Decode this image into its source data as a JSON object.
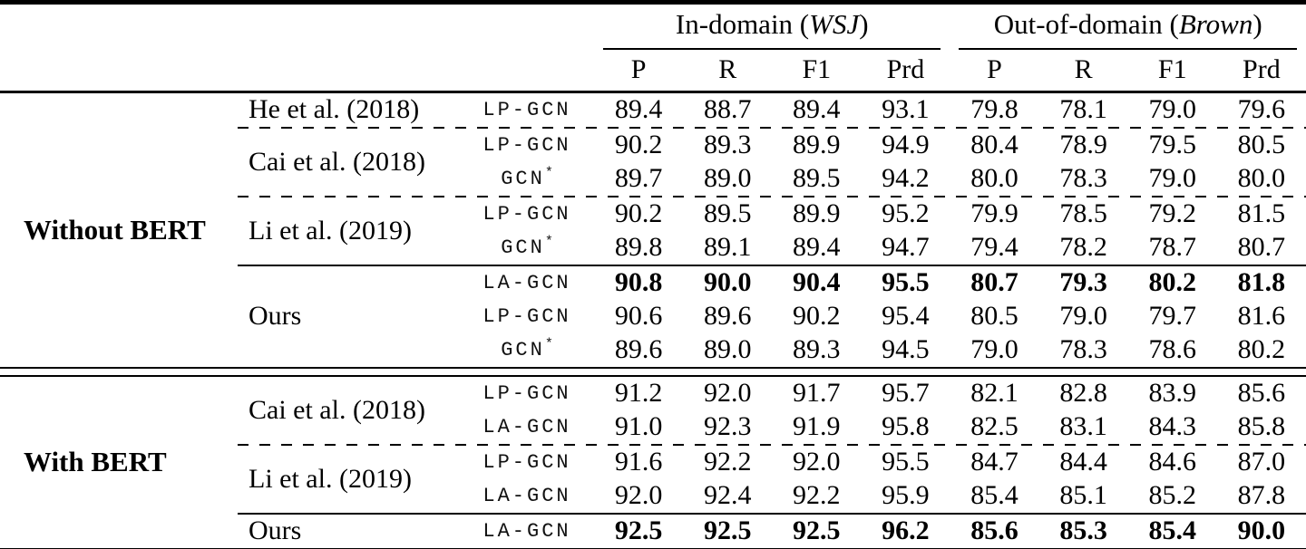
{
  "header": {
    "groups": [
      {
        "prefix": "In-domain (",
        "italic": "WSJ",
        "suffix": ")"
      },
      {
        "prefix": "Out-of-domain (",
        "italic": "Brown",
        "suffix": ")"
      }
    ],
    "metrics": [
      "P",
      "R",
      "F1",
      "Prd"
    ]
  },
  "sections": [
    {
      "label": "Without BERT",
      "groups": [
        {
          "method": "He et al. (2018)",
          "sep_after": "dashed",
          "rows": [
            {
              "model": "LP-GCN",
              "bold": false,
              "values": [
                "89.4",
                "88.7",
                "89.4",
                "93.1",
                "79.8",
                "78.1",
                "79.0",
                "79.6"
              ]
            }
          ]
        },
        {
          "method": "Cai et al. (2018)",
          "sep_after": "dashed",
          "rows": [
            {
              "model": "LP-GCN",
              "bold": false,
              "values": [
                "90.2",
                "89.3",
                "89.9",
                "94.9",
                "80.4",
                "78.9",
                "79.5",
                "80.5"
              ]
            },
            {
              "model": "GCN*",
              "bold": false,
              "values": [
                "89.7",
                "89.0",
                "89.5",
                "94.2",
                "80.0",
                "78.3",
                "79.0",
                "80.0"
              ]
            }
          ]
        },
        {
          "method": "Li et al. (2019)",
          "sep_after": "solid",
          "rows": [
            {
              "model": "LP-GCN",
              "bold": false,
              "values": [
                "90.2",
                "89.5",
                "89.9",
                "95.2",
                "79.9",
                "78.5",
                "79.2",
                "81.5"
              ]
            },
            {
              "model": "GCN*",
              "bold": false,
              "values": [
                "89.8",
                "89.1",
                "89.4",
                "94.7",
                "79.4",
                "78.2",
                "78.7",
                "80.7"
              ]
            }
          ]
        },
        {
          "method": "Ours",
          "sep_after": null,
          "rows": [
            {
              "model": "LA-GCN",
              "bold": true,
              "values": [
                "90.8",
                "90.0",
                "90.4",
                "95.5",
                "80.7",
                "79.3",
                "80.2",
                "81.8"
              ]
            },
            {
              "model": "LP-GCN",
              "bold": false,
              "values": [
                "90.6",
                "89.6",
                "90.2",
                "95.4",
                "80.5",
                "79.0",
                "79.7",
                "81.6"
              ]
            },
            {
              "model": "GCN*",
              "bold": false,
              "values": [
                "89.6",
                "89.0",
                "89.3",
                "94.5",
                "79.0",
                "78.3",
                "78.6",
                "80.2"
              ]
            }
          ]
        }
      ]
    },
    {
      "label": "With BERT",
      "groups": [
        {
          "method": "Cai et al. (2018)",
          "sep_after": "dashed",
          "rows": [
            {
              "model": "LP-GCN",
              "bold": false,
              "values": [
                "91.2",
                "92.0",
                "91.7",
                "95.7",
                "82.1",
                "82.8",
                "83.9",
                "85.6"
              ]
            },
            {
              "model": "LA-GCN",
              "bold": false,
              "values": [
                "91.0",
                "92.3",
                "91.9",
                "95.8",
                "82.5",
                "83.1",
                "84.3",
                "85.8"
              ]
            }
          ]
        },
        {
          "method": "Li et al. (2019)",
          "sep_after": "solid",
          "rows": [
            {
              "model": "LP-GCN",
              "bold": false,
              "values": [
                "91.6",
                "92.2",
                "92.0",
                "95.5",
                "84.7",
                "84.4",
                "84.6",
                "87.0"
              ]
            },
            {
              "model": "LA-GCN",
              "bold": false,
              "values": [
                "92.0",
                "92.4",
                "92.2",
                "95.9",
                "85.4",
                "85.1",
                "85.2",
                "87.8"
              ]
            }
          ]
        },
        {
          "method": "Ours",
          "sep_after": null,
          "rows": [
            {
              "model": "LA-GCN",
              "bold": true,
              "values": [
                "92.5",
                "92.5",
                "92.5",
                "96.2",
                "85.6",
                "85.3",
                "85.4",
                "90.0"
              ]
            }
          ]
        }
      ]
    }
  ]
}
